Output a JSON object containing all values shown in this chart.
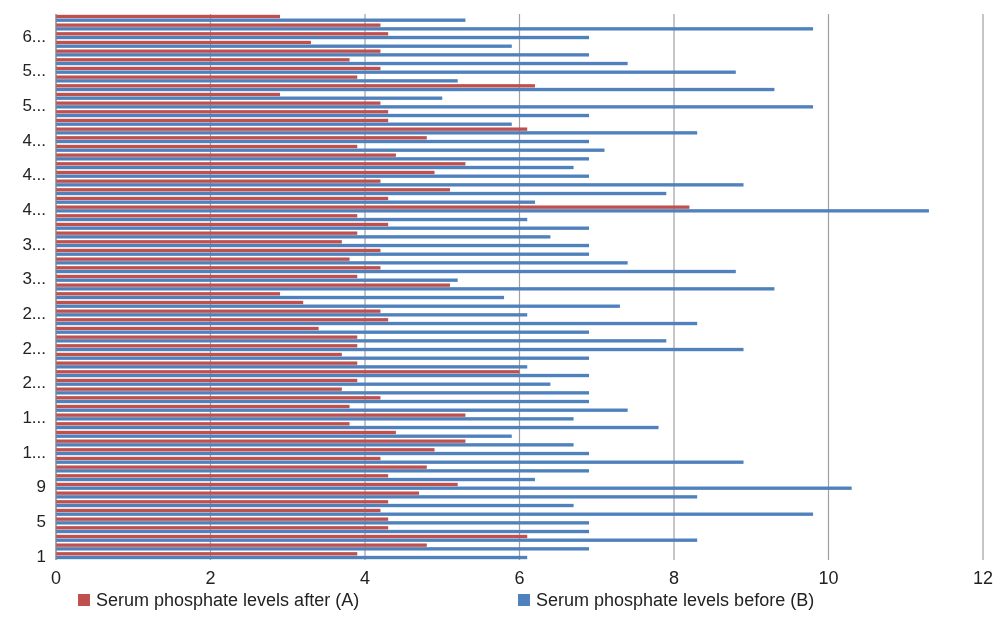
{
  "chart_data": {
    "type": "bar",
    "orientation": "horizontal",
    "categories": [
      null,
      null,
      "6...",
      null,
      null,
      null,
      "5...",
      null,
      null,
      null,
      "5...",
      null,
      null,
      null,
      "4...",
      null,
      null,
      null,
      "4...",
      null,
      null,
      null,
      "4...",
      null,
      null,
      null,
      "3...",
      null,
      null,
      null,
      "3...",
      null,
      null,
      null,
      "2...",
      null,
      null,
      null,
      "2...",
      null,
      null,
      null,
      "2...",
      null,
      null,
      null,
      "1...",
      null,
      null,
      null,
      "1...",
      null,
      null,
      null,
      "9",
      null,
      null,
      null,
      "5",
      null,
      null,
      null,
      "1"
    ],
    "series": [
      {
        "name": "Serum phosphate levels after (A)",
        "color": "#c0504d",
        "values": [
          2.9,
          4.2,
          4.3,
          3.3,
          4.2,
          3.8,
          4.2,
          3.9,
          6.2,
          2.9,
          4.2,
          4.3,
          4.3,
          6.1,
          4.8,
          3.9,
          4.4,
          5.3,
          4.9,
          4.2,
          5.1,
          4.3,
          8.2,
          3.9,
          4.3,
          3.9,
          3.7,
          4.2,
          3.8,
          4.2,
          3.9,
          5.1,
          2.9,
          3.2,
          4.2,
          4.3,
          3.4,
          3.9,
          3.9,
          3.7,
          3.9,
          6.0,
          3.9,
          3.7,
          4.2,
          3.8,
          5.3,
          3.8,
          4.4,
          5.3,
          4.9,
          4.2,
          4.8,
          4.3,
          5.2,
          4.7,
          4.3,
          4.2,
          4.3,
          4.3,
          6.1,
          4.8,
          3.9
        ]
      },
      {
        "name": "Serum phosphate levels before (B)",
        "color": "#4f81bd",
        "values": [
          5.3,
          9.8,
          6.9,
          5.9,
          6.9,
          7.4,
          8.8,
          5.2,
          9.3,
          5.0,
          9.8,
          6.9,
          5.9,
          8.3,
          6.9,
          7.1,
          6.9,
          6.7,
          6.9,
          8.9,
          7.9,
          6.2,
          11.3,
          6.1,
          6.9,
          6.4,
          6.9,
          6.9,
          7.4,
          8.8,
          5.2,
          9.3,
          5.8,
          7.3,
          6.1,
          8.3,
          6.9,
          7.9,
          8.9,
          6.9,
          6.1,
          6.9,
          6.4,
          6.9,
          6.9,
          7.4,
          6.7,
          7.8,
          5.9,
          6.7,
          6.9,
          8.9,
          6.9,
          6.2,
          10.3,
          8.3,
          6.7,
          9.8,
          6.9,
          6.9,
          8.3,
          6.9,
          6.1
        ]
      }
    ],
    "xlim": [
      0,
      12
    ],
    "xticks": [
      0,
      2,
      4,
      6,
      8,
      10,
      12
    ],
    "grid": "x",
    "legend": "bottom"
  }
}
